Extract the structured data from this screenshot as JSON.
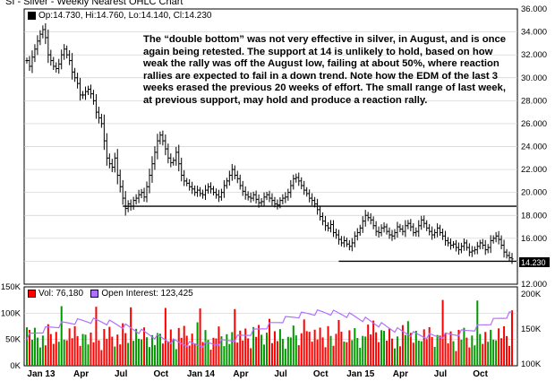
{
  "chart_data": [
    {
      "type": "ohlc",
      "title": "SI - Silver - Weekly Nearest OHLC Chart",
      "legend": {
        "marker_color": "#000000",
        "text": "Op:14.730, Hi:14.760, Lo:14.140, Cl:14.230"
      },
      "last_price_label": "14.230",
      "ylim": [
        12,
        36
      ],
      "y_ticks": [
        "36.000",
        "34.000",
        "32.000",
        "30.000",
        "28.000",
        "26.000",
        "24.000",
        "22.000",
        "20.000",
        "18.000",
        "16.000",
        "14.000",
        "12.000"
      ],
      "x_ticks": [
        "Jan 13",
        "Apr",
        "Jul",
        "Oct",
        "Jan 14",
        "Apr",
        "Jul",
        "Oct",
        "Jan 15",
        "Apr",
        "Jul",
        "Oct"
      ],
      "support_lines": [
        {
          "from": "Jul 2013",
          "to": "end",
          "level": 18.8
        },
        {
          "from": "Dec 2014",
          "to": "end",
          "level": 14.0
        }
      ],
      "bar_color": "#000000",
      "annotation": "The “double bottom” was not very effective in silver, in August, and is once again being retested.  The support at 14 is unlikely to hold, based on how weak the rally was off the August low, failing at about 50%, where reaction rallies are expected to fail in a down trend.  Note how the EDM of the last 3 weeks erased the previous 20 weeks of effort.  The small range of last week, at previous support, may hold and produce a reaction rally.",
      "close_series_approx": [
        31.5,
        31.0,
        31.8,
        32.5,
        33.2,
        33.8,
        34.2,
        33.5,
        32.0,
        31.5,
        31.0,
        30.8,
        31.2,
        32.0,
        32.5,
        32.0,
        31.5,
        30.5,
        30.0,
        29.5,
        28.5,
        28.5,
        28.8,
        29.0,
        28.6,
        28.0,
        27.0,
        26.5,
        26.0,
        24.5,
        23.0,
        22.5,
        22.2,
        23.0,
        21.5,
        20.5,
        19.5,
        18.6,
        19.0,
        18.8,
        19.3,
        19.5,
        19.8,
        20.0,
        19.6,
        20.5,
        21.5,
        22.5,
        23.5,
        24.5,
        25.0,
        24.5,
        23.8,
        23.0,
        22.6,
        22.8,
        23.5,
        22.5,
        21.5,
        21.0,
        20.8,
        20.5,
        20.3,
        20.0,
        20.2,
        19.9,
        19.8,
        20.2,
        20.5,
        20.3,
        20.0,
        19.8,
        19.6,
        20.0,
        20.6,
        21.0,
        21.5,
        22.0,
        21.5,
        21.2,
        20.6,
        20.1,
        19.8,
        19.6,
        19.5,
        19.8,
        19.4,
        19.1,
        19.2,
        19.6,
        19.8,
        19.5,
        19.3,
        19.0,
        18.9,
        19.3,
        19.5,
        19.6,
        20.0,
        20.6,
        21.2,
        21.3,
        21.0,
        20.6,
        20.2,
        19.9,
        19.5,
        19.3,
        19.0,
        18.5,
        17.9,
        17.5,
        17.1,
        16.9,
        17.2,
        16.5,
        16.3,
        15.9,
        15.6,
        15.8,
        15.5,
        15.3,
        15.6,
        16.2,
        16.5,
        16.9,
        17.5,
        18.0,
        17.8,
        17.6,
        17.1,
        16.6,
        16.5,
        16.9,
        17.0,
        16.6,
        16.3,
        16.2,
        16.5,
        17.0,
        16.8,
        16.6,
        17.1,
        17.3,
        17.0,
        16.5,
        16.6,
        17.1,
        17.6,
        17.3,
        16.9,
        16.6,
        16.3,
        16.5,
        16.9,
        16.5,
        16.2,
        15.8,
        15.6,
        15.4,
        15.5,
        15.2,
        15.0,
        15.3,
        15.6,
        15.2,
        14.8,
        14.9,
        15.0,
        15.3,
        15.6,
        15.4,
        15.0,
        15.2,
        15.8,
        16.0,
        16.2,
        15.9,
        15.4,
        14.8,
        14.5,
        14.3,
        14.2
      ]
    },
    {
      "type": "bar",
      "series_note": "Weekly volume (red = down week, green = up week) with open interest line",
      "volume_legend": {
        "color": "#ff0000",
        "text": "Vol: 76,180"
      },
      "oi_legend": {
        "color": "#b070ff",
        "text": "Open Interest: 123,425"
      },
      "ylim": [
        0,
        150000
      ],
      "y_ticks_left": [
        "150K",
        "100K",
        "50K",
        "0K"
      ],
      "y_ticks_right": [
        "200K",
        "150K",
        "100K"
      ],
      "x_ticks": [
        "Jan 13",
        "Apr",
        "Jul",
        "Oct",
        "Jan 14",
        "Apr",
        "Jul",
        "Oct",
        "Jan 15",
        "Apr",
        "Jul",
        "Oct"
      ],
      "colors": {
        "up": "#009900",
        "down": "#ff0000",
        "open_interest": "#b070ff"
      }
    }
  ]
}
